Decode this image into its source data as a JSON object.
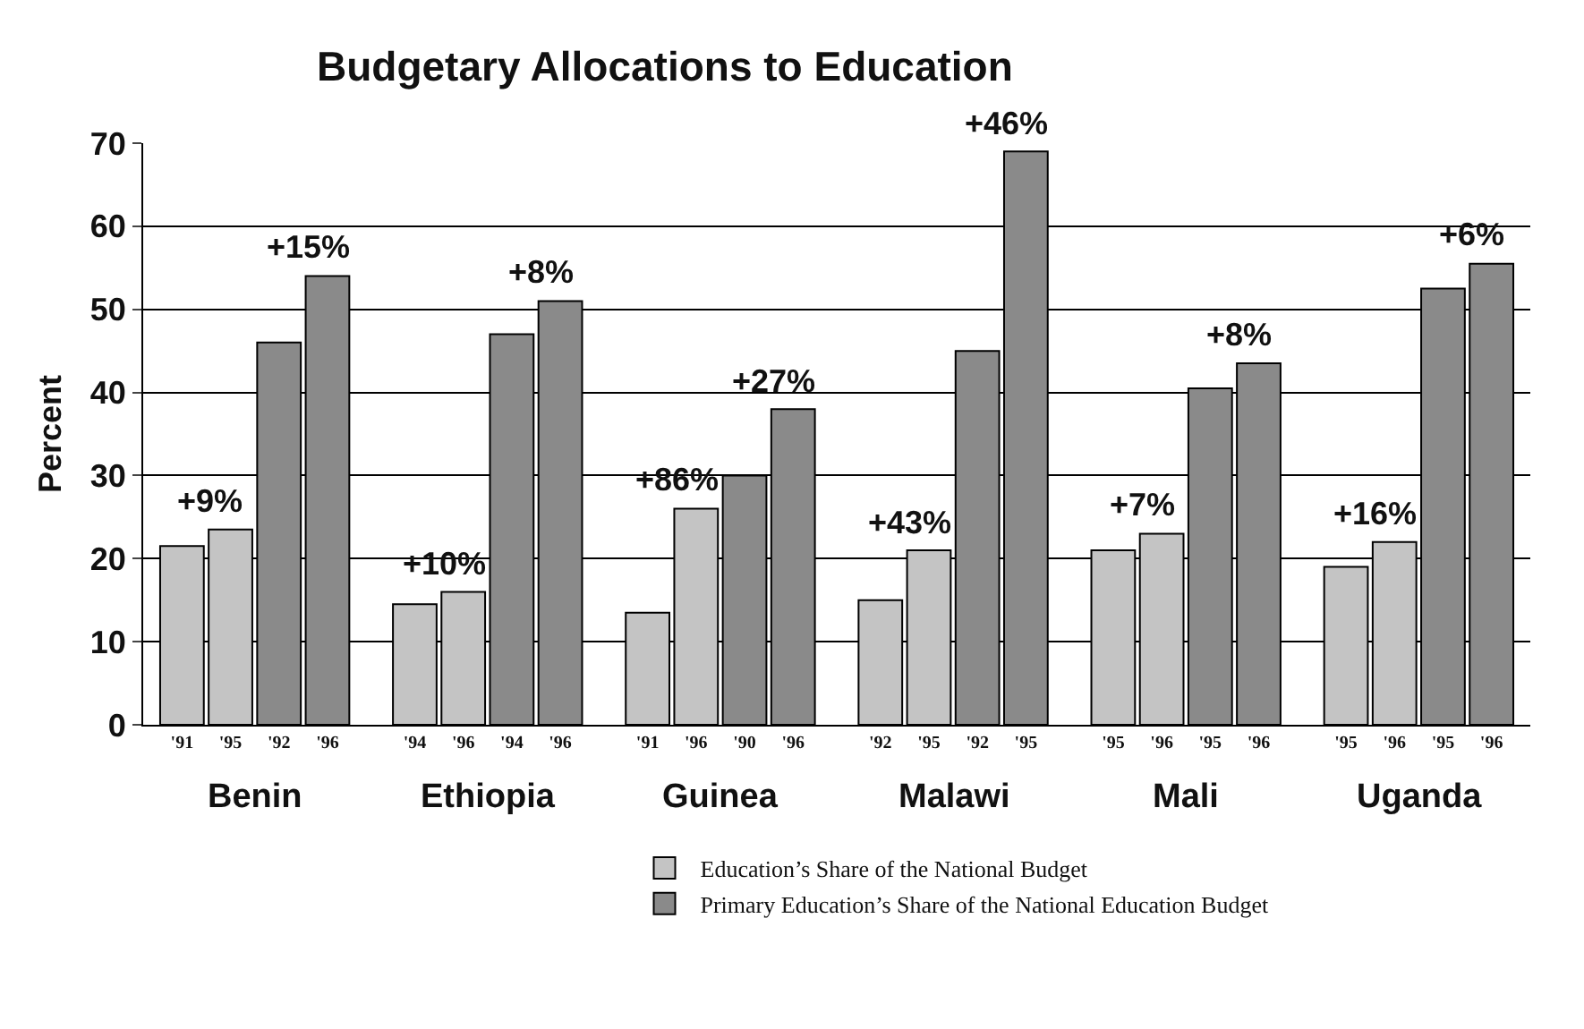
{
  "chart_data": {
    "type": "bar",
    "title": "Budgetary Allocations to Education",
    "ylabel": "Percent",
    "categories": [
      "'91",
      "'95",
      "'92",
      "'96",
      "'94",
      "'96",
      "'94",
      "'96",
      "'91",
      "'96",
      "'90",
      "'96",
      "'92",
      "'95",
      "'92",
      "'95",
      "'95",
      "'96",
      "'95",
      "'96",
      "'95",
      "'96",
      "'95",
      "'96"
    ],
    "series": [
      {
        "name": "Education’s Share of the National Budget",
        "color": "#c4c4c4",
        "values": [
          21.5,
          23.5,
          null,
          null,
          14.5,
          16,
          null,
          null,
          13.5,
          26,
          null,
          null,
          15,
          21,
          null,
          null,
          21,
          23,
          null,
          null,
          19,
          22,
          null,
          null
        ]
      },
      {
        "name": "Primary Education’s Share of the National Education Budget",
        "color": "#8a8a8a",
        "values": [
          null,
          null,
          46,
          54,
          null,
          null,
          47,
          51,
          null,
          null,
          30,
          38,
          null,
          null,
          45,
          69,
          null,
          null,
          40.5,
          43.5,
          null,
          null,
          52.5,
          55.5
        ]
      }
    ],
    "annotations": [
      "Benin",
      "Ethiopia",
      "Guinea",
      "Malawi",
      "Mali",
      "Uganda",
      {
        "text": "+9%",
        "y": 23.5
      },
      {
        "text": "+15%",
        "y": 54
      },
      {
        "text": "+10%",
        "y": 16
      },
      {
        "text": "+8%",
        "y": 51
      },
      {
        "text": "+86%",
        "y": 26
      },
      {
        "text": "+27%",
        "y": 38
      },
      {
        "text": "+43%",
        "y": 21
      },
      {
        "text": "+46%",
        "y": 69
      },
      {
        "text": "+7%",
        "y": 23
      },
      {
        "text": "+8%",
        "y": 43.5
      },
      {
        "text": "+16%",
        "y": 22
      },
      {
        "text": "+6%",
        "y": 55.5
      }
    ],
    "ylim": [
      0,
      70
    ],
    "yticks": [
      0,
      10,
      20,
      30,
      40,
      50,
      60,
      70
    ],
    "grid": "y",
    "legend": "bottom"
  }
}
